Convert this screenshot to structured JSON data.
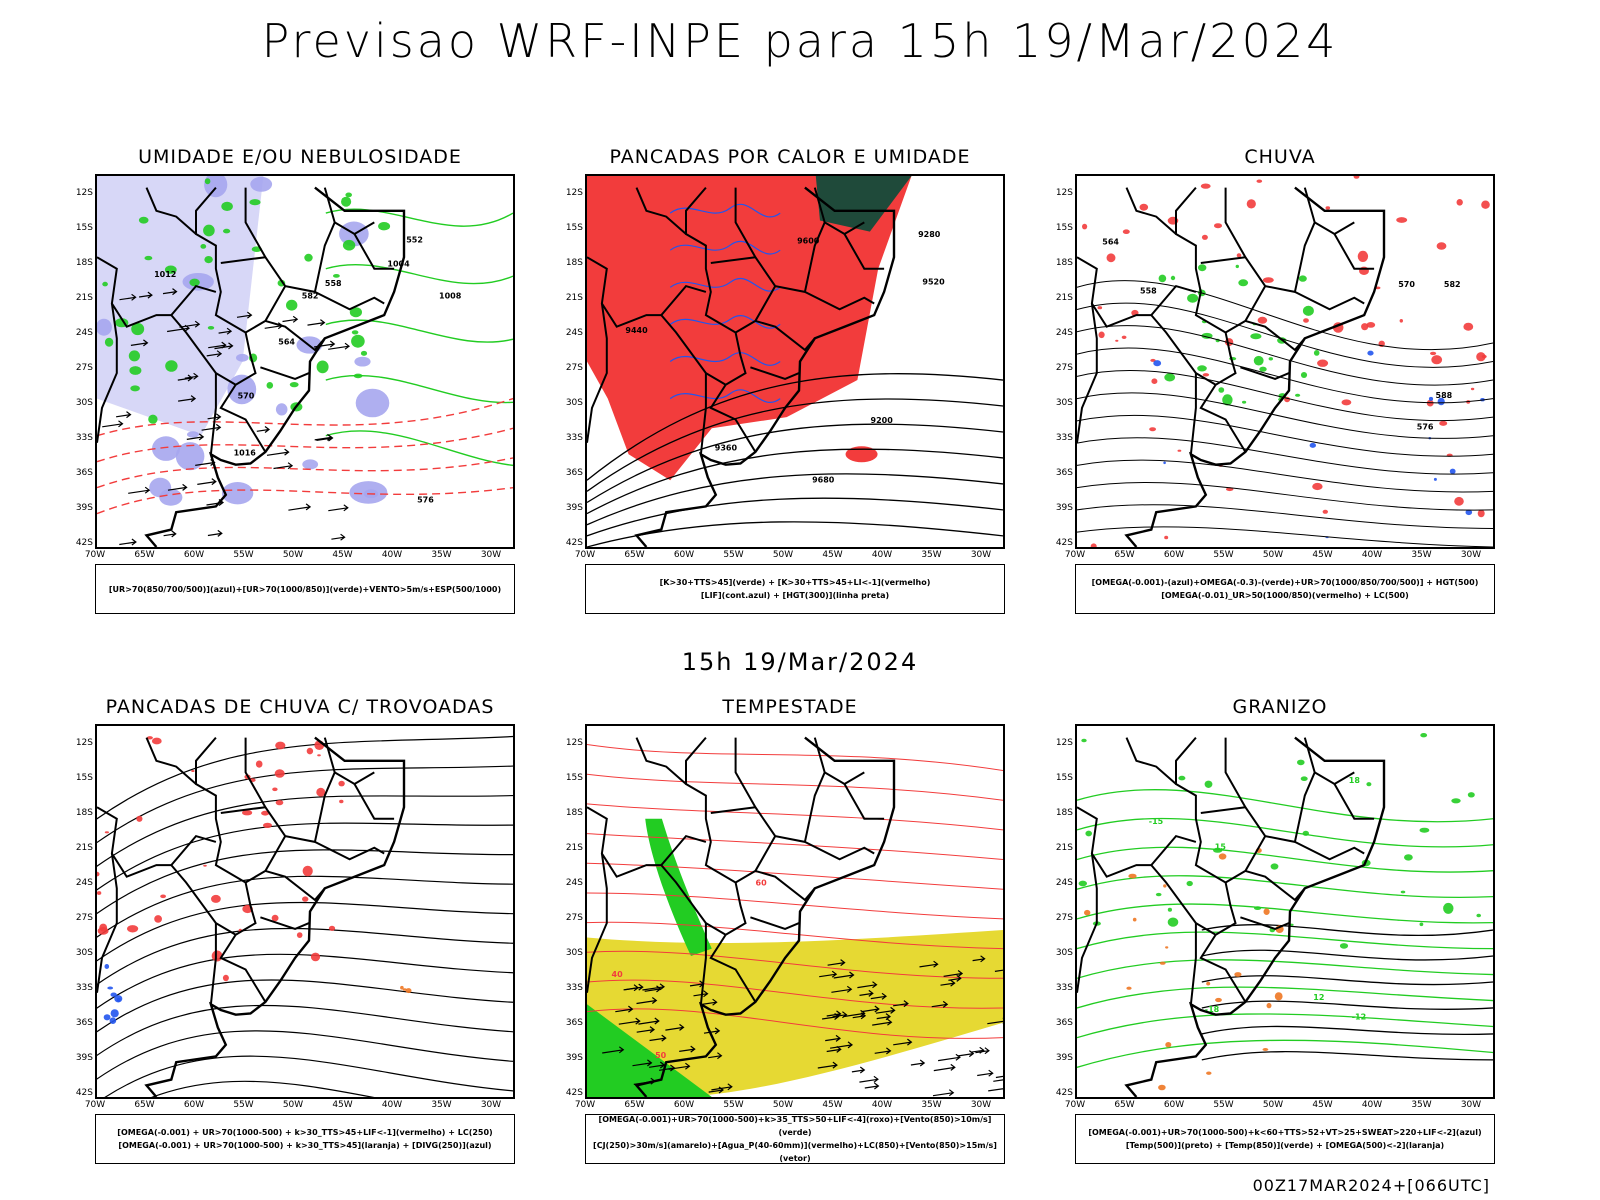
{
  "title": "Previsao WRF-INPE  para 15h 19/Mar/2024",
  "mid_label": "15h 19/Mar/2024",
  "footer": "00Z17MAR2024+[066UTC]",
  "lat_labels": [
    "12S",
    "15S",
    "18S",
    "21S",
    "24S",
    "27S",
    "30S",
    "33S",
    "36S",
    "39S",
    "42S"
  ],
  "lon_labels": [
    "70W",
    "65W",
    "60W",
    "55W",
    "50W",
    "45W",
    "40W",
    "35W",
    "30W"
  ],
  "colors": {
    "red": "#f23c3c",
    "green": "#22cc22",
    "blue": "#2255ee",
    "lavender": "#a6a6ee",
    "yellow": "#e6d933",
    "darkgreen": "#1f4a3a",
    "orange": "#ee7722",
    "purple": "#9911cc"
  },
  "panels": [
    {
      "title": "UMIDADE E/OU NEBULOSIDADE",
      "legend": [
        "[UR>70(850/700/500)](azul)+[UR>70(1000/850)](verde)+VENTO>5m/s+ESP(500/1000)"
      ],
      "contour_labels": [
        "1008",
        "1012",
        "1004",
        "1016",
        "570",
        "576",
        "582",
        "564",
        "558",
        "552"
      ]
    },
    {
      "title": "PANCADAS POR CALOR E UMIDADE",
      "legend": [
        "[K>30+TTS>45](verde)  +  [K>30+TTS>45+LI<-1](vermelho)",
        "[LIF](cont.azul)  +  [HGT(300)](linha preta)"
      ],
      "contour_labels": [
        "9680",
        "9600",
        "9520",
        "9440",
        "9360",
        "9280",
        "9200"
      ]
    },
    {
      "title": "CHUVA",
      "legend": [
        "[OMEGA(-0.001)-(azul)+OMEGA(-0.3)-(verde)+UR>70(1000/850/700/500)]  +  HGT(500)",
        "[OMEGA(-0.01)_UR>50(1000/850)(vermelho)  +  LC(500)"
      ],
      "contour_labels": [
        "588",
        "582",
        "576",
        "570",
        "564",
        "558"
      ]
    },
    {
      "title": "PANCADAS DE CHUVA C/ TROVOADAS",
      "legend": [
        "[OMEGA(-0.001)  +  UR>70(1000-500)  +  k>30_TTS>45+LIF<-1](vermelho)  +  LC(250)",
        "[OMEGA(-0.001)  +  UR>70(1000-500)  +  k>30_TTS>45](laranja)  +  [DIVG(250)](azul)"
      ],
      "contour_labels": []
    },
    {
      "title": "TEMPESTADE",
      "legend": [
        "[OMEGA(-0.001)+UR>70(1000-500)+k>35_TTS>50+LIF<-4](roxo)+[Vento(850)>10m/s](verde)",
        "[CJ(250)>30m/s](amarelo)+[Agua_P(40-60mm)](vermelho)+LC(850)+[Vento(850)>15m/s](vetor)"
      ],
      "contour_labels": [
        "40",
        "50",
        "60"
      ]
    },
    {
      "title": "GRANIZO",
      "legend": [
        "[OMEGA(-0.001)+UR>70(1000-500)+k<60+TTS>52+VT>25+SWEAT>220+LIF<-2](azul)",
        "[Temp(500)](preto)  +  [Temp(850)](verde)  +  [OMEGA(500)<-2](laranja)"
      ],
      "contour_labels": [
        "-12",
        "-15",
        "-18",
        "12",
        "15",
        "18"
      ]
    }
  ]
}
